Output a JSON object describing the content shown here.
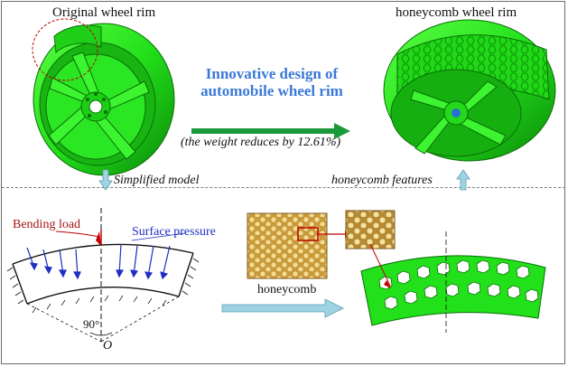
{
  "labels": {
    "original_wheel_rim": "Original wheel rim",
    "honeycomb_wheel_rim": "honeycomb wheel rim",
    "innovative_design": "Innovative design of automobile wheel rim",
    "weight_reduces": "(the weight reduces  by 12.61%)",
    "simplified_model": "Simplified model",
    "honeycomb_features": "honeycomb features",
    "bending_load": "Bending load",
    "surface_pressure": "Surface pressure",
    "honeycomb": "honeycomb",
    "angle": "90°",
    "origin": "O"
  },
  "colors": {
    "rim_green": "#22e01a",
    "rim_dark": "#0f8f0c",
    "arrow_green": "#1a9a3a",
    "arrow_blue": "#9ed3e4",
    "headline_blue": "#3b78d8",
    "load_red": "#c00000",
    "pressure_blue": "#1f2ec2",
    "honeycomb_gold": "#c9a24a"
  }
}
